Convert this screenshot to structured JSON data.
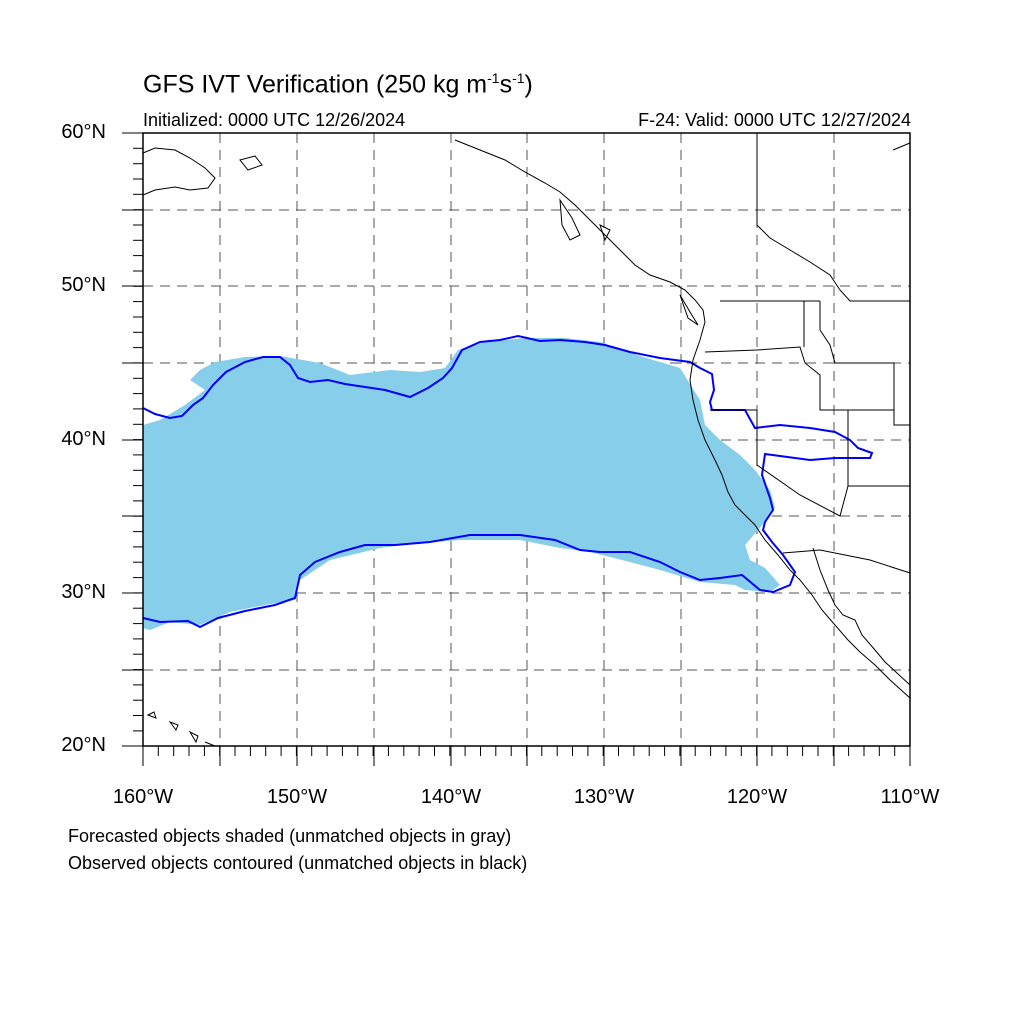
{
  "title": {
    "main": "GFS IVT Verification (250 kg m",
    "exp1": "-1",
    "mid": "s",
    "exp2": "-1",
    "end": ")"
  },
  "initialized": "Initialized: 0000 UTC 12/26/2024",
  "valid": "F-24: Valid: 0000 UTC 12/27/2024",
  "lat_labels": [
    "60°N",
    "50°N",
    "40°N",
    "30°N",
    "20°N"
  ],
  "lon_labels": [
    "160°W",
    "150°W",
    "140°W",
    "130°W",
    "120°W",
    "110°W"
  ],
  "caption": {
    "line1": "Forecasted objects shaded (unmatched objects in gray)",
    "line2": "Observed objects contoured (unmatched objects in black)"
  },
  "colors": {
    "forecast_fill": "#87ceeb",
    "observed_contour": "#0000ff",
    "coastline": "#000000",
    "grid": "#555555"
  }
}
